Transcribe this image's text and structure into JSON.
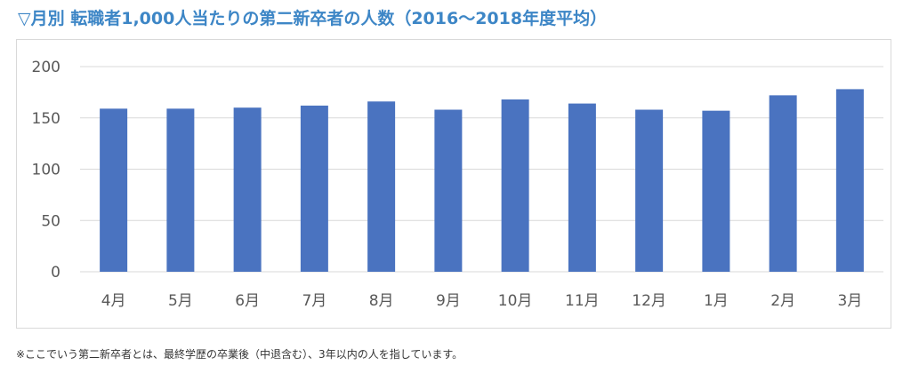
{
  "title": "▽月別 転職者1,000人当たりの第二新卒者の人数（2016〜2018年度平均）",
  "footnote": "※ここでいう第二新卒者とは、最終学歴の卒業後（中退含む）、3年以内の人を指しています。",
  "colors": {
    "title": "#3d86c6",
    "bar": "#4a73c0",
    "grid": "#d9d9d9",
    "axis_text": "#595959"
  },
  "chart_data": {
    "type": "bar",
    "title": "",
    "xlabel": "",
    "ylabel": "",
    "ylim": [
      0,
      200
    ],
    "yticks": [
      "0",
      "50",
      "100",
      "150",
      "200"
    ],
    "grid": true,
    "legend": "none",
    "categories": [
      "4月",
      "5月",
      "6月",
      "7月",
      "8月",
      "9月",
      "10月",
      "11月",
      "12月",
      "1月",
      "2月",
      "3月"
    ],
    "values": [
      159,
      159,
      160,
      162,
      166,
      158,
      168,
      164,
      158,
      157,
      172,
      178
    ]
  }
}
